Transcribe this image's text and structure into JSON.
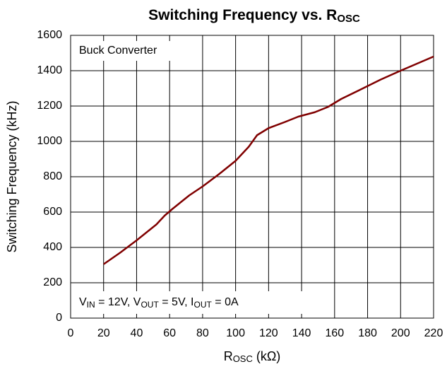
{
  "chart_data": {
    "type": "line",
    "title": "Switching Frequency vs. R",
    "title_subscript": "OSC",
    "x_label": "R",
    "x_label_subscript": "OSC",
    "x_label_unit": " (kΩ)",
    "y_label": "Switching Frequency (kHz)",
    "annotations": [
      "Buck Converter"
    ],
    "conditions": [
      "V",
      "IN",
      " = 12V, V",
      "OUT",
      " = 5V, I",
      "OUT",
      " = 0A"
    ],
    "x": [
      20,
      30,
      40,
      52,
      57,
      62,
      72,
      80,
      90,
      100,
      108,
      113,
      120,
      130,
      138,
      148,
      156,
      164,
      175,
      188,
      200,
      210,
      220
    ],
    "series": [
      {
        "name": "Switching Frequency",
        "color": "#800000",
        "values": [
          305,
          370,
          440,
          530,
          580,
          620,
          695,
          745,
          815,
          890,
          970,
          1035,
          1075,
          1110,
          1140,
          1165,
          1195,
          1240,
          1290,
          1350,
          1400,
          1440,
          1480
        ]
      }
    ],
    "xlim": [
      0,
      220
    ],
    "xticks": [
      0,
      20,
      40,
      60,
      80,
      100,
      120,
      140,
      160,
      180,
      200,
      220
    ],
    "ylim": [
      0,
      1600
    ],
    "yticks": [
      0,
      200,
      400,
      600,
      800,
      1000,
      1200,
      1400,
      1600
    ],
    "grid": true
  }
}
